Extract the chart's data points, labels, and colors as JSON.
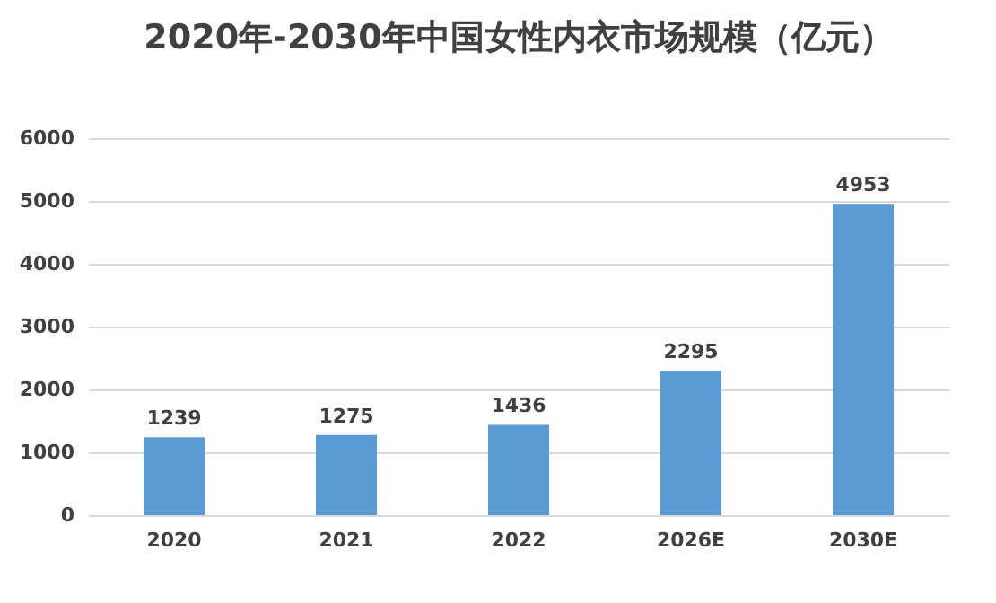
{
  "chart_data": {
    "type": "bar",
    "title": "2020年-2030年中国女性内衣市场规模（亿元）",
    "categories": [
      "2020",
      "2021",
      "2022",
      "2026E",
      "2030E"
    ],
    "values": [
      1239,
      1275,
      1436,
      2295,
      4953
    ],
    "color": "#5b9bd5",
    "ylim": [
      0,
      6000
    ],
    "yticks": [
      0,
      1000,
      2000,
      3000,
      4000,
      5000,
      6000
    ],
    "grid": "y",
    "data_labels": true
  }
}
